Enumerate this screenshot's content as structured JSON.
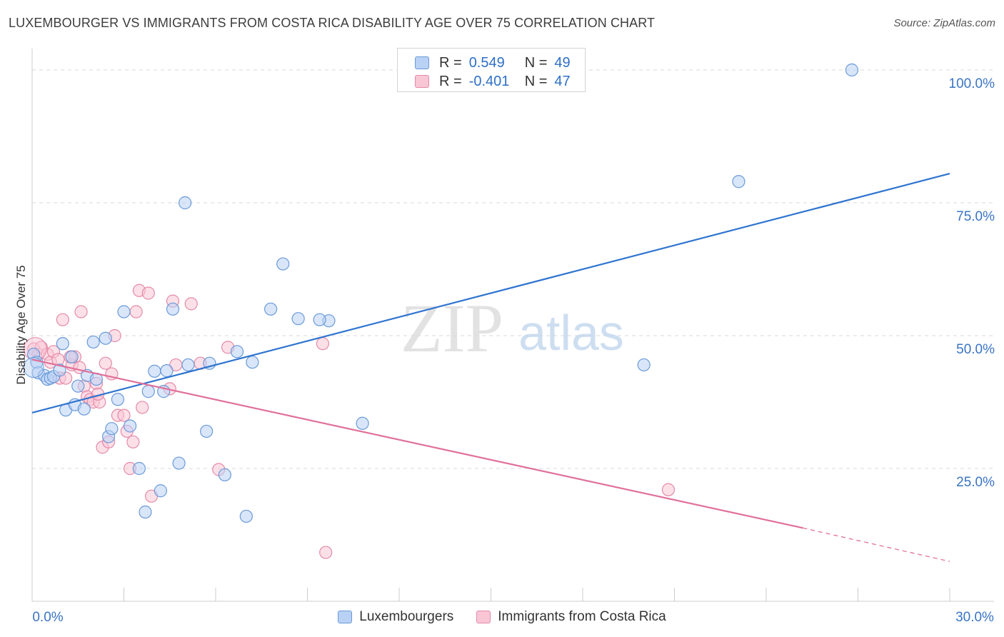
{
  "title": "LUXEMBOURGER VS IMMIGRANTS FROM COSTA RICA DISABILITY AGE OVER 75 CORRELATION CHART",
  "source": "Source: ZipAtlas.com",
  "watermark": {
    "zip": "ZIP",
    "atlas": "atlas"
  },
  "legend": {
    "r_label": "R =",
    "n_label": "N =",
    "rows": [
      {
        "r": "0.549",
        "n": "49"
      },
      {
        "r": "-0.401",
        "n": "47"
      }
    ]
  },
  "bottom_legend": [
    "Luxembourgers",
    "Immigrants from Costa Rica"
  ],
  "colors": {
    "blue_fill": "#b9d1f5",
    "blue_stroke": "#6a9ad8",
    "blue_line": "#2f74cf",
    "pink_fill": "#f9c6d6",
    "pink_stroke": "#e48aa8",
    "pink_line": "#e0709a",
    "grid": "#d8d8d8",
    "tick_text": "#3a74c4"
  },
  "chart_data": {
    "type": "scatter",
    "title": "LUXEMBOURGER VS IMMIGRANTS FROM COSTA RICA DISABILITY AGE OVER 75 CORRELATION CHART",
    "xlabel": "",
    "ylabel": "Disability Age Over 75",
    "xlim": [
      0,
      30
    ],
    "ylim": [
      0,
      102
    ],
    "x_tick_labels": [
      "0.0%",
      "30.0%"
    ],
    "y_ticks": [
      25,
      50,
      75,
      100
    ],
    "y_tick_labels": [
      "25.0%",
      "50.0%",
      "75.0%",
      "100.0%"
    ],
    "series": [
      {
        "name": "Luxembourgers",
        "r": 0.549,
        "n": 49,
        "trend": {
          "x": [
            0,
            30
          ],
          "y": [
            35.5,
            80.5
          ]
        },
        "points": [
          [
            0.05,
            46.5
          ],
          [
            0.15,
            45.0
          ],
          [
            0.2,
            43.0
          ],
          [
            0.4,
            42.5
          ],
          [
            0.5,
            41.8
          ],
          [
            0.6,
            42.0
          ],
          [
            0.7,
            42.3
          ],
          [
            0.9,
            43.5
          ],
          [
            1.0,
            48.5
          ],
          [
            1.1,
            36.0
          ],
          [
            1.3,
            46.0
          ],
          [
            1.4,
            37.0
          ],
          [
            1.5,
            40.5
          ],
          [
            1.7,
            36.2
          ],
          [
            1.8,
            42.5
          ],
          [
            2.0,
            48.8
          ],
          [
            2.1,
            41.8
          ],
          [
            2.4,
            49.5
          ],
          [
            2.5,
            31.0
          ],
          [
            2.6,
            32.5
          ],
          [
            2.8,
            38.0
          ],
          [
            3.0,
            54.5
          ],
          [
            3.2,
            33.0
          ],
          [
            3.5,
            25.0
          ],
          [
            3.8,
            39.5
          ],
          [
            4.0,
            43.3
          ],
          [
            4.2,
            20.8
          ],
          [
            4.4,
            43.4
          ],
          [
            4.6,
            55.0
          ],
          [
            5.0,
            75.0
          ],
          [
            5.1,
            44.5
          ],
          [
            4.8,
            26.0
          ],
          [
            5.7,
            32.0
          ],
          [
            5.8,
            44.8
          ],
          [
            6.3,
            23.8
          ],
          [
            6.7,
            47.0
          ],
          [
            7.0,
            16.0
          ],
          [
            7.2,
            45.0
          ],
          [
            7.8,
            55.0
          ],
          [
            8.2,
            63.5
          ],
          [
            8.7,
            53.2
          ],
          [
            9.7,
            52.8
          ],
          [
            9.4,
            53.0
          ],
          [
            10.8,
            33.5
          ],
          [
            3.7,
            16.8
          ],
          [
            4.3,
            39.5
          ],
          [
            20.0,
            44.5
          ],
          [
            23.1,
            79.0
          ],
          [
            26.8,
            100.0
          ]
        ]
      },
      {
        "name": "Immigrants from Costa Rica",
        "r": -0.401,
        "n": 47,
        "trend": {
          "x": [
            0,
            25.2
          ],
          "y": [
            45.5,
            13.8
          ]
        },
        "trend_dashed": {
          "x": [
            25.2,
            30
          ],
          "y": [
            13.8,
            7.5
          ]
        },
        "points": [
          [
            0.05,
            47.5
          ],
          [
            0.2,
            46.5
          ],
          [
            0.3,
            47.8
          ],
          [
            0.5,
            46.5
          ],
          [
            0.6,
            45.0
          ],
          [
            0.7,
            47.0
          ],
          [
            0.9,
            42.0
          ],
          [
            1.0,
            53.0
          ],
          [
            1.1,
            42.0
          ],
          [
            1.3,
            44.5
          ],
          [
            1.4,
            46.0
          ],
          [
            1.6,
            54.5
          ],
          [
            1.7,
            40.5
          ],
          [
            1.8,
            38.5
          ],
          [
            1.9,
            38.0
          ],
          [
            2.0,
            37.5
          ],
          [
            2.1,
            41.0
          ],
          [
            2.2,
            37.5
          ],
          [
            2.3,
            29.0
          ],
          [
            2.4,
            44.8
          ],
          [
            2.5,
            30.0
          ],
          [
            2.6,
            42.8
          ],
          [
            2.7,
            50.0
          ],
          [
            2.8,
            35.0
          ],
          [
            3.0,
            35.0
          ],
          [
            3.1,
            32.0
          ],
          [
            3.2,
            25.0
          ],
          [
            3.3,
            30.0
          ],
          [
            3.4,
            54.5
          ],
          [
            3.5,
            58.5
          ],
          [
            3.6,
            36.5
          ],
          [
            3.8,
            58.0
          ],
          [
            3.9,
            19.8
          ],
          [
            4.6,
            56.5
          ],
          [
            4.5,
            40.0
          ],
          [
            4.7,
            44.5
          ],
          [
            5.2,
            56.0
          ],
          [
            5.5,
            44.8
          ],
          [
            6.1,
            24.8
          ],
          [
            6.4,
            47.8
          ],
          [
            9.5,
            48.5
          ],
          [
            9.6,
            9.2
          ],
          [
            20.8,
            21.0
          ],
          [
            1.25,
            46.0
          ],
          [
            0.85,
            45.5
          ],
          [
            1.55,
            44.0
          ],
          [
            2.15,
            39.0
          ]
        ]
      }
    ]
  }
}
